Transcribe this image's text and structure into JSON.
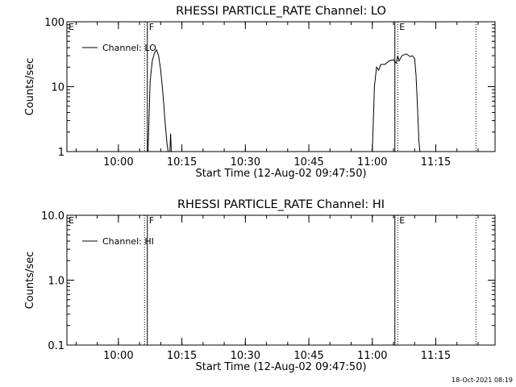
{
  "chart_data": [
    {
      "type": "line",
      "title": "RHESSI PARTICLE_RATE Channel: LO",
      "xlabel": "Start Time (12-Aug-02 09:47:50)",
      "ylabel": "Counts/sec",
      "yscale": "log",
      "ylim": [
        1,
        100
      ],
      "yticks": [
        {
          "value": 1,
          "label": "1"
        },
        {
          "value": 10,
          "label": "10"
        },
        {
          "value": 100,
          "label": "100"
        }
      ],
      "xticks": [
        {
          "t": "10:00",
          "label": "10:00"
        },
        {
          "t": "10:15",
          "label": "10:15"
        },
        {
          "t": "10:30",
          "label": "10:30"
        },
        {
          "t": "10:45",
          "label": "10:45"
        },
        {
          "t": "11:00",
          "label": "11:00"
        },
        {
          "t": "11:15",
          "label": "11:15"
        }
      ],
      "xlim": [
        "09:47:50",
        "11:29:00"
      ],
      "legend": {
        "position": "top-left",
        "label": "Channel: LO"
      },
      "flags": [
        {
          "t": "09:47:50",
          "label": "E",
          "style": "none"
        },
        {
          "t": "10:06:10",
          "label": "",
          "style": "dotted"
        },
        {
          "t": "10:06:50",
          "label": "F",
          "style": "solid"
        },
        {
          "t": "11:05:20",
          "label": "",
          "style": "solid"
        },
        {
          "t": "11:06:00",
          "label": "E",
          "style": "dotted"
        },
        {
          "t": "11:24:30",
          "label": "",
          "style": "dotted"
        }
      ],
      "series": [
        {
          "segments": [
            [
              [
                "10:07:00",
                1
              ],
              [
                "10:07:30",
                12
              ],
              [
                "10:08:00",
                25
              ],
              [
                "10:08:30",
                33
              ],
              [
                "10:09:00",
                37
              ],
              [
                "10:09:30",
                30
              ],
              [
                "10:10:00",
                18
              ],
              [
                "10:10:30",
                8
              ],
              [
                "10:11:00",
                3
              ],
              [
                "10:11:30",
                1.3
              ],
              [
                "10:11:45",
                1
              ]
            ],
            [
              [
                "10:12:10",
                1
              ],
              [
                "10:12:20",
                1.9
              ],
              [
                "10:12:30",
                1
              ]
            ],
            [
              [
                "11:00:00",
                1
              ],
              [
                "11:00:30",
                10
              ],
              [
                "11:01:00",
                20
              ],
              [
                "11:01:30",
                18
              ],
              [
                "11:02:00",
                22
              ],
              [
                "11:03:00",
                22
              ],
              [
                "11:04:00",
                25
              ],
              [
                "11:05:00",
                26
              ],
              [
                "11:05:40",
                23
              ],
              [
                "11:06:00",
                30
              ],
              [
                "11:06:20",
                25
              ],
              [
                "11:07:00",
                30
              ],
              [
                "11:08:00",
                32
              ],
              [
                "11:09:00",
                29
              ],
              [
                "11:09:30",
                30
              ],
              [
                "11:10:00",
                27
              ],
              [
                "11:10:20",
                15
              ],
              [
                "11:10:40",
                5
              ],
              [
                "11:11:00",
                1.5
              ],
              [
                "11:11:15",
                1
              ]
            ]
          ]
        }
      ]
    },
    {
      "type": "line",
      "title": "RHESSI PARTICLE_RATE Channel: HI",
      "xlabel": "Start Time (12-Aug-02 09:47:50)",
      "ylabel": "Counts/sec",
      "yscale": "log",
      "ylim": [
        0.1,
        10
      ],
      "yticks": [
        {
          "value": 0.1,
          "label": "0.1"
        },
        {
          "value": 1,
          "label": "1.0"
        },
        {
          "value": 10,
          "label": "10.0"
        }
      ],
      "xticks": [
        {
          "t": "10:00",
          "label": "10:00"
        },
        {
          "t": "10:15",
          "label": "10:15"
        },
        {
          "t": "10:30",
          "label": "10:30"
        },
        {
          "t": "10:45",
          "label": "10:45"
        },
        {
          "t": "11:00",
          "label": "11:00"
        },
        {
          "t": "11:15",
          "label": "11:15"
        }
      ],
      "xlim": [
        "09:47:50",
        "11:29:00"
      ],
      "legend": {
        "position": "top-left",
        "label": "Channel: HI"
      },
      "flags": [
        {
          "t": "09:47:50",
          "label": "E",
          "style": "none"
        },
        {
          "t": "10:06:10",
          "label": "",
          "style": "dotted"
        },
        {
          "t": "10:06:50",
          "label": "F",
          "style": "solid"
        },
        {
          "t": "11:05:20",
          "label": "",
          "style": "solid"
        },
        {
          "t": "11:06:00",
          "label": "E",
          "style": "dotted"
        },
        {
          "t": "11:24:30",
          "label": "",
          "style": "dotted"
        }
      ],
      "series": [
        {
          "segments": []
        }
      ]
    }
  ],
  "footer": {
    "timestamp": "18-Oct-2021 08:19"
  },
  "colors": {
    "background": "#ffffff",
    "foreground": "#000000"
  }
}
